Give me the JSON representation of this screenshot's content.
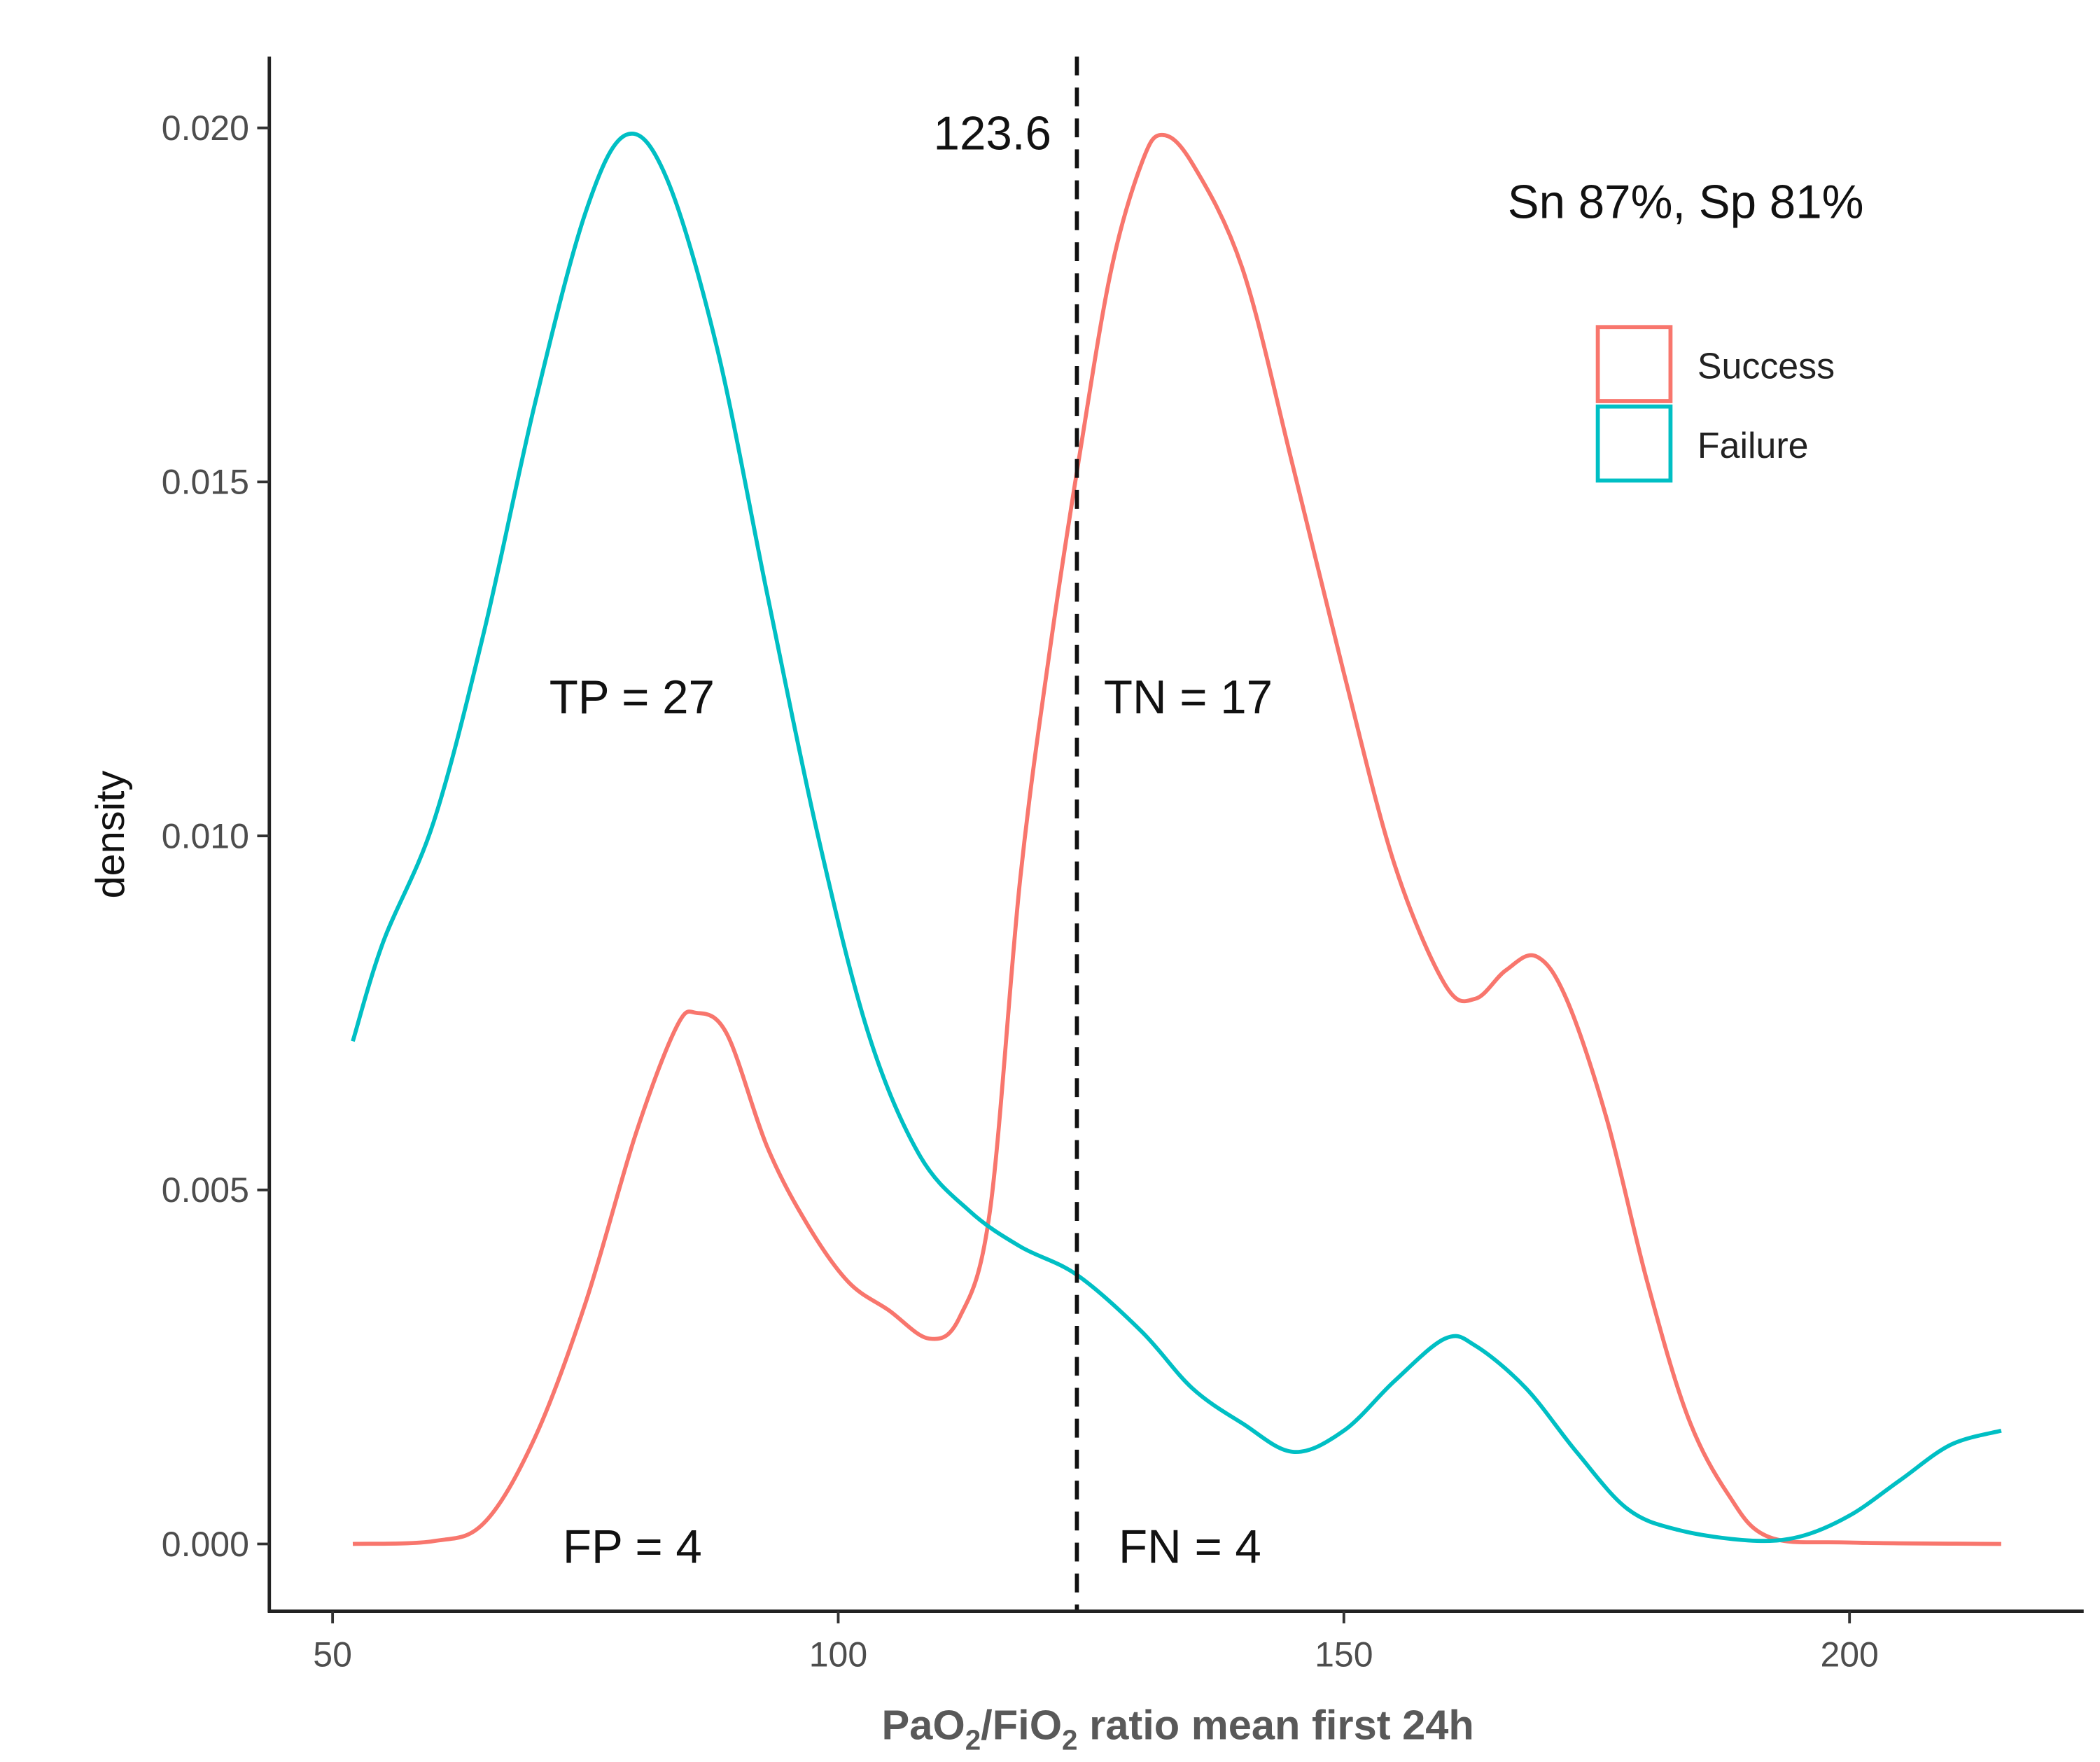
{
  "chart_data": {
    "type": "line",
    "title": "",
    "xlabel": {
      "parts": [
        "PaO",
        "2",
        "/FiO",
        "2",
        " ratio mean first 24h"
      ]
    },
    "ylabel": "density",
    "xlim": [
      44,
      222
    ],
    "ylim": [
      -0.0009,
      0.02
    ],
    "xticks": [
      50,
      100,
      150,
      200
    ],
    "xtick_labels": [
      "50",
      "100",
      "150",
      "200"
    ],
    "yticks": [
      0,
      0.005,
      0.01,
      0.015,
      0.02
    ],
    "ytick_labels": [
      "0.000",
      "0.005",
      "0.010",
      "0.015",
      "0.020"
    ],
    "grid": false,
    "legend_placement": "top-right",
    "cutoff": {
      "x": 123.6,
      "label": "123.6",
      "style": "dashed"
    },
    "annotations": {
      "metrics": "Sn 87%, Sp 81%",
      "tp": "TP = 27",
      "tn": "TN = 17",
      "fp": "FP = 4",
      "fn": "FN = 4"
    },
    "series": [
      {
        "name": "Success",
        "color": "#F8766D",
        "x": [
          52,
          60,
          65,
          70,
          75,
          80,
          84,
          86,
          89,
          93,
          97,
          101,
          105,
          109,
          112,
          115,
          118,
          121,
          124,
          127,
          130,
          132,
          135,
          140,
          145,
          150,
          155,
          160,
          163,
          166,
          169,
          172,
          176,
          180,
          184,
          188,
          192,
          200,
          215
        ],
        "y": [
          0,
          4e-05,
          0.0003,
          0.0015,
          0.0034,
          0.0058,
          0.0073,
          0.0075,
          0.0072,
          0.0056,
          0.0045,
          0.0037,
          0.0033,
          0.0029,
          0.0032,
          0.0047,
          0.0094,
          0.0127,
          0.0155,
          0.018,
          0.0195,
          0.0199,
          0.0195,
          0.018,
          0.0152,
          0.0123,
          0.0096,
          0.0079,
          0.0077,
          0.0081,
          0.0083,
          0.0077,
          0.006,
          0.0037,
          0.0018,
          0.0007,
          0.0001,
          2e-05,
          0
        ]
      },
      {
        "name": "Failure",
        "color": "#00BFC4",
        "x": [
          52,
          55,
          60,
          65,
          70,
          75,
          79,
          83,
          88,
          93,
          98,
          103,
          108,
          113,
          118,
          123.6,
          130,
          135,
          140,
          145,
          150,
          155,
          160,
          163,
          168,
          173,
          178,
          183,
          190,
          195,
          200,
          205,
          210,
          215
        ],
        "y": [
          0.0071,
          0.0085,
          0.0102,
          0.0129,
          0.0161,
          0.0188,
          0.0199,
          0.0193,
          0.0169,
          0.0134,
          0.01,
          0.0072,
          0.0055,
          0.0047,
          0.0042,
          0.0038,
          0.003,
          0.0022,
          0.0017,
          0.0013,
          0.0016,
          0.0023,
          0.0029,
          0.0028,
          0.0022,
          0.0013,
          0.0005,
          0.0002,
          5e-05,
          0.0001,
          0.0004,
          0.0009,
          0.0014,
          0.0016
        ]
      }
    ]
  }
}
